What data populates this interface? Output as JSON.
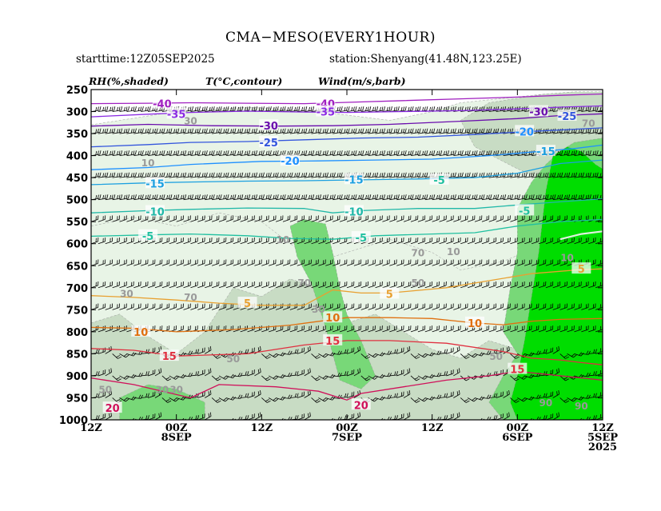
{
  "header": {
    "title": "CMA−MESO(EVERY1HOUR)",
    "starttime": "starttime:12Z05SEP2025",
    "station": "station:Shenyang(41.48N,123.25E)",
    "legend_rh": "RH(%,shaded)",
    "legend_t": "T(°C,contour)",
    "legend_wind": "Wind(m/s,barb)"
  },
  "chart_data": {
    "type": "heatmap",
    "y_axis": {
      "label": "",
      "unit": "hPa",
      "ticks": [
        250,
        300,
        350,
        400,
        450,
        500,
        550,
        600,
        650,
        700,
        750,
        800,
        850,
        900,
        950,
        1000
      ],
      "range": [
        1000,
        250
      ],
      "reversed_pressure": true
    },
    "x_axis": {
      "label": "",
      "direction": "time increases right-to-left",
      "range_hours": [
        0,
        72
      ],
      "ticks": [
        {
          "hour": 72,
          "line1": "12Z",
          "line2": "",
          "line3": ""
        },
        {
          "hour": 60,
          "line1": "00Z",
          "line2": "8SEP",
          "line3": ""
        },
        {
          "hour": 48,
          "line1": "12Z",
          "line2": "",
          "line3": ""
        },
        {
          "hour": 36,
          "line1": "00Z",
          "line2": "7SEP",
          "line3": ""
        },
        {
          "hour": 24,
          "line1": "12Z",
          "line2": "",
          "line3": ""
        },
        {
          "hour": 12,
          "line1": "00Z",
          "line2": "6SEP",
          "line3": ""
        },
        {
          "hour": 0,
          "line1": "12Z",
          "line2": "5SEP",
          "line3": "2025"
        }
      ]
    },
    "temperature_contours": [
      {
        "value": -40,
        "color": "#a020c0",
        "points": [
          [
            72,
            282
          ],
          [
            64,
            281
          ],
          [
            58,
            280
          ],
          [
            50,
            281
          ],
          [
            42,
            282
          ],
          [
            36,
            279
          ],
          [
            28,
            275
          ],
          [
            20,
            271
          ],
          [
            12,
            267
          ],
          [
            6,
            263
          ],
          [
            0,
            260
          ]
        ]
      },
      {
        "value": -35,
        "color": "#8a2be2",
        "points": [
          [
            72,
            312
          ],
          [
            64,
            306
          ],
          [
            58,
            302
          ],
          [
            50,
            299
          ],
          [
            42,
            301
          ],
          [
            36,
            302
          ],
          [
            28,
            300
          ],
          [
            20,
            298
          ],
          [
            12,
            294
          ],
          [
            6,
            290
          ],
          [
            0,
            287
          ]
        ]
      },
      {
        "value": -30,
        "color": "#6a0dad",
        "points": [
          [
            72,
            333
          ],
          [
            64,
            329
          ],
          [
            55,
            332
          ],
          [
            46,
            333
          ],
          [
            38,
            332
          ],
          [
            30,
            329
          ],
          [
            20,
            322
          ],
          [
            12,
            316
          ],
          [
            6,
            309
          ],
          [
            0,
            305
          ]
        ]
      },
      {
        "value": -25,
        "color": "#3355dd",
        "points": [
          [
            72,
            380
          ],
          [
            64,
            375
          ],
          [
            58,
            370
          ],
          [
            50,
            368
          ],
          [
            42,
            364
          ],
          [
            34,
            360
          ],
          [
            26,
            358
          ],
          [
            18,
            352
          ],
          [
            10,
            345
          ],
          [
            4,
            340
          ],
          [
            0,
            337
          ]
        ]
      },
      {
        "value": -20,
        "color": "#1e90ff",
        "points": [
          [
            72,
            432
          ],
          [
            64,
            427
          ],
          [
            58,
            420
          ],
          [
            48,
            413
          ],
          [
            40,
            412
          ],
          [
            32,
            410
          ],
          [
            24,
            408
          ],
          [
            16,
            400
          ],
          [
            10,
            392
          ],
          [
            4,
            384
          ],
          [
            0,
            376
          ]
        ]
      },
      {
        "value": -15,
        "color": "#1ca0e0",
        "points": [
          [
            72,
            466
          ],
          [
            64,
            462
          ],
          [
            58,
            460
          ],
          [
            50,
            458
          ],
          [
            42,
            457
          ],
          [
            34,
            455
          ],
          [
            26,
            453
          ],
          [
            18,
            450
          ],
          [
            12,
            440
          ],
          [
            6,
            418
          ],
          [
            0,
            410
          ]
        ]
      },
      {
        "value": -10,
        "color": "#20b8a8",
        "points": [
          [
            72,
            530
          ],
          [
            64,
            525
          ],
          [
            58,
            522
          ],
          [
            50,
            519
          ],
          [
            42,
            520
          ],
          [
            38,
            530
          ],
          [
            34,
            525
          ],
          [
            26,
            520
          ],
          [
            18,
            520
          ],
          [
            12,
            512
          ],
          [
            6,
            505
          ],
          [
            0,
            498
          ]
        ]
      },
      {
        "value": -5,
        "color": "#20c0a0",
        "points": [
          [
            72,
            583
          ],
          [
            64,
            580
          ],
          [
            58,
            578
          ],
          [
            50,
            582
          ],
          [
            44,
            588
          ],
          [
            38,
            590
          ],
          [
            32,
            582
          ],
          [
            24,
            578
          ],
          [
            18,
            575
          ],
          [
            12,
            560
          ],
          [
            6,
            550
          ],
          [
            0,
            545
          ]
        ]
      },
      {
        "value": 0,
        "color": "#e0f0e0",
        "points": [
          [
            6,
            590
          ],
          [
            3,
            578
          ],
          [
            0,
            572
          ]
        ]
      },
      {
        "value": 5,
        "color": "#e8a030",
        "points": [
          [
            72,
            718
          ],
          [
            66,
            722
          ],
          [
            60,
            728
          ],
          [
            54,
            735
          ],
          [
            48,
            740
          ],
          [
            42,
            740
          ],
          [
            38,
            705
          ],
          [
            34,
            712
          ],
          [
            30,
            712
          ],
          [
            22,
            700
          ],
          [
            16,
            684
          ],
          [
            10,
            668
          ],
          [
            4,
            660
          ],
          [
            0,
            657
          ]
        ]
      },
      {
        "value": 10,
        "color": "#e07010",
        "points": [
          [
            72,
            790
          ],
          [
            66,
            792
          ],
          [
            60,
            800
          ],
          [
            52,
            795
          ],
          [
            44,
            785
          ],
          [
            36,
            768
          ],
          [
            30,
            768
          ],
          [
            24,
            770
          ],
          [
            18,
            780
          ],
          [
            14,
            784
          ],
          [
            10,
            776
          ],
          [
            6,
            772
          ],
          [
            0,
            770
          ]
        ]
      },
      {
        "value": 15,
        "color": "#e03040",
        "points": [
          [
            72,
            838
          ],
          [
            66,
            842
          ],
          [
            60,
            855
          ],
          [
            50,
            850
          ],
          [
            42,
            830
          ],
          [
            36,
            820
          ],
          [
            30,
            820
          ],
          [
            22,
            826
          ],
          [
            14,
            845
          ],
          [
            10,
            860
          ],
          [
            6,
            864
          ],
          [
            3,
            870
          ],
          [
            0,
            875
          ]
        ]
      },
      {
        "value": 20,
        "color": "#d0105a",
        "points": [
          [
            72,
            905
          ],
          [
            66,
            920
          ],
          [
            62,
            935
          ],
          [
            58,
            950
          ],
          [
            54,
            920
          ],
          [
            46,
            925
          ],
          [
            40,
            935
          ],
          [
            36,
            955
          ],
          [
            34,
            940
          ],
          [
            28,
            925
          ],
          [
            22,
            910
          ],
          [
            16,
            900
          ],
          [
            12,
            890
          ],
          [
            6,
            900
          ],
          [
            0,
            910
          ]
        ]
      }
    ],
    "wind_barbs": "wind barbs plotted hourly at each pressure level from 250 to 1000 hPa; westerly to west-northwesterly aloft (~20–40 m/s above 500 hPa), weaker and more variable near the surface",
    "rh_shading": {
      "levels_percent": [
        30,
        50,
        70,
        90
      ],
      "colors": [
        "#e8f4e6",
        "#c8dcc4",
        "#78d878",
        "#00dd00"
      ],
      "labels_shown": [
        30,
        50,
        70,
        90
      ]
    },
    "contour_labels": [
      {
        "text": "-40",
        "hour": 62,
        "p": 282,
        "color": "#a020c0"
      },
      {
        "text": "-40",
        "hour": 39,
        "p": 282,
        "color": "#a020c0"
      },
      {
        "text": "-35",
        "hour": 60,
        "p": 305,
        "color": "#8a2be2"
      },
      {
        "text": "-35",
        "hour": 39,
        "p": 300,
        "color": "#8a2be2"
      },
      {
        "text": "-30",
        "hour": 9,
        "p": 300,
        "color": "#6a0dad"
      },
      {
        "text": "-30",
        "hour": 47,
        "p": 332,
        "color": "#6a0dad"
      },
      {
        "text": "-25",
        "hour": 5,
        "p": 310,
        "color": "#3355dd"
      },
      {
        "text": "-25",
        "hour": 47,
        "p": 370,
        "color": "#3355dd"
      },
      {
        "text": "-20",
        "hour": 11,
        "p": 345,
        "color": "#1e90ff"
      },
      {
        "text": "-20",
        "hour": 44,
        "p": 412,
        "color": "#1e90ff"
      },
      {
        "text": "-15",
        "hour": 8,
        "p": 390,
        "color": "#1ca0e0"
      },
      {
        "text": "-15",
        "hour": 35,
        "p": 454,
        "color": "#1ca0e0"
      },
      {
        "text": "-15",
        "hour": 63,
        "p": 463,
        "color": "#1ca0e0"
      },
      {
        "text": "-10",
        "hour": 35,
        "p": 527,
        "color": "#20b8a8"
      },
      {
        "text": "-10",
        "hour": 63,
        "p": 527,
        "color": "#20b8a8"
      },
      {
        "text": "-5",
        "hour": 64,
        "p": 582,
        "color": "#20c0a0"
      },
      {
        "text": "-5",
        "hour": 34,
        "p": 586,
        "color": "#20c0a0"
      },
      {
        "text": "-5",
        "hour": 11,
        "p": 525,
        "color": "#20c0a0"
      },
      {
        "text": "-5",
        "hour": 23,
        "p": 455,
        "color": "#20c0a0"
      },
      {
        "text": "5",
        "hour": 50,
        "p": 735,
        "color": "#e8a030"
      },
      {
        "text": "5",
        "hour": 30,
        "p": 714,
        "color": "#e8a030"
      },
      {
        "text": "5",
        "hour": 3,
        "p": 657,
        "color": "#e8a030"
      },
      {
        "text": "10",
        "hour": 65,
        "p": 800,
        "color": "#e07010"
      },
      {
        "text": "10",
        "hour": 38,
        "p": 768,
        "color": "#e07010"
      },
      {
        "text": "10",
        "hour": 18,
        "p": 780,
        "color": "#e07010"
      },
      {
        "text": "15",
        "hour": 61,
        "p": 855,
        "color": "#e03040"
      },
      {
        "text": "15",
        "hour": 38,
        "p": 820,
        "color": "#e03040"
      },
      {
        "text": "15",
        "hour": 12,
        "p": 885,
        "color": "#e03040"
      },
      {
        "text": "20",
        "hour": 69,
        "p": 973,
        "color": "#d0105a"
      },
      {
        "text": "20",
        "hour": 34,
        "p": 966,
        "color": "#d0105a"
      }
    ],
    "rh_labels": [
      {
        "text": "30",
        "hour": 58,
        "p": 320
      },
      {
        "text": "30",
        "hour": 60,
        "p": 930
      },
      {
        "text": "30",
        "hour": 62,
        "p": 930
      },
      {
        "text": "10",
        "hour": 5,
        "p": 630
      },
      {
        "text": "50",
        "hour": 52,
        "p": 860
      },
      {
        "text": "50",
        "hour": 70,
        "p": 930
      },
      {
        "text": "50",
        "hour": 15,
        "p": 855
      },
      {
        "text": "70",
        "hour": 2,
        "p": 325
      },
      {
        "text": "70",
        "hour": 58,
        "p": 720
      },
      {
        "text": "90",
        "hour": 3,
        "p": 967
      },
      {
        "text": "90",
        "hour": 8,
        "p": 960
      },
      {
        "text": "10",
        "hour": 64,
        "p": 415
      },
      {
        "text": "10",
        "hour": 21,
        "p": 617
      },
      {
        "text": "70",
        "hour": 42,
        "p": 688
      },
      {
        "text": "30",
        "hour": 67,
        "p": 712
      },
      {
        "text": "30",
        "hour": 40,
        "p": 748
      },
      {
        "text": "10",
        "hour": 45,
        "p": 590
      },
      {
        "text": "50",
        "hour": 26,
        "p": 688
      },
      {
        "text": "70",
        "hour": 26,
        "p": 620
      }
    ]
  }
}
